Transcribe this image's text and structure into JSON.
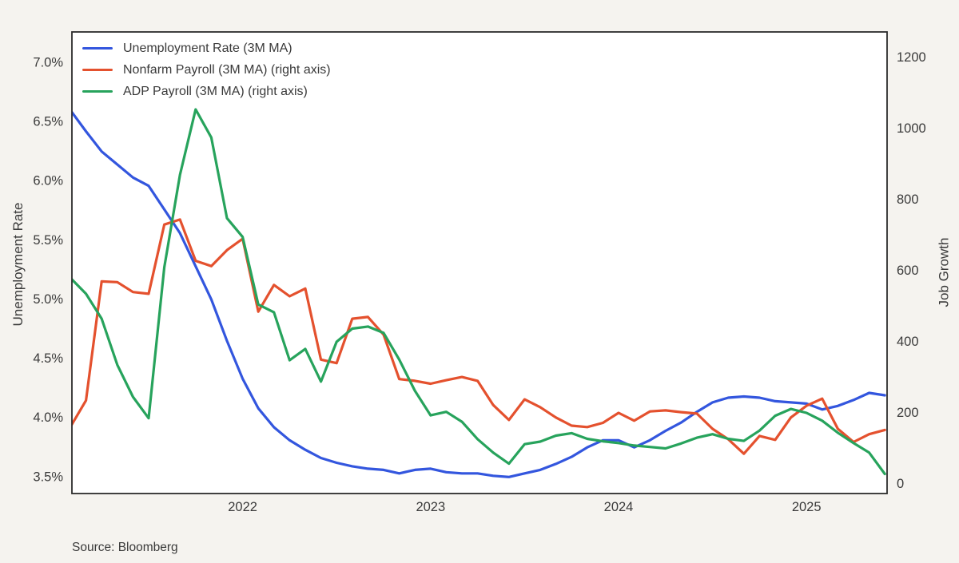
{
  "chart_data": {
    "type": "line",
    "title": "",
    "x_months": [
      "2021-02",
      "2021-03",
      "2021-04",
      "2021-05",
      "2021-06",
      "2021-07",
      "2021-08",
      "2021-09",
      "2021-10",
      "2021-11",
      "2021-12",
      "2022-01",
      "2022-02",
      "2022-03",
      "2022-04",
      "2022-05",
      "2022-06",
      "2022-07",
      "2022-08",
      "2022-09",
      "2022-10",
      "2022-11",
      "2022-12",
      "2023-01",
      "2023-02",
      "2023-03",
      "2023-04",
      "2023-05",
      "2023-06",
      "2023-07",
      "2023-08",
      "2023-09",
      "2023-10",
      "2023-11",
      "2023-12",
      "2024-01",
      "2024-02",
      "2024-03",
      "2024-04",
      "2024-05",
      "2024-06",
      "2024-07",
      "2024-08",
      "2024-09",
      "2024-10",
      "2024-11",
      "2024-12",
      "2025-01",
      "2025-02",
      "2025-03",
      "2025-04",
      "2025-05",
      "2025-06"
    ],
    "x_tick_labels": [
      "2022",
      "2023",
      "2024",
      "2025"
    ],
    "x_tick_month_indices": [
      11,
      23,
      35,
      47
    ],
    "left_axis": {
      "label": "Unemployment Rate",
      "unit": "percent",
      "tick_labels": [
        "3.5%",
        "4.0%",
        "4.5%",
        "5.0%",
        "5.5%",
        "6.0%",
        "6.5%",
        "7.0%"
      ],
      "tick_values": [
        3.5,
        4.0,
        4.5,
        5.0,
        5.5,
        6.0,
        6.5,
        7.0
      ],
      "ylim": [
        3.36,
        7.26
      ]
    },
    "right_axis": {
      "label": "Job Growth",
      "unit": "thousands",
      "tick_labels": [
        "0",
        "200",
        "400",
        "600",
        "800",
        "1000",
        "1200"
      ],
      "tick_values": [
        0,
        200,
        400,
        600,
        800,
        1000,
        1200
      ],
      "ylim": [
        -27,
        1272
      ]
    },
    "grid": false,
    "legend_position": "upper left",
    "series": [
      {
        "name": "Unemployment Rate (3M MA)",
        "short_name": "unemployment-rate",
        "axis": "left",
        "color": "#3356de",
        "values": [
          6.6,
          6.42,
          6.25,
          6.14,
          6.03,
          5.96,
          5.76,
          5.56,
          5.28,
          5.0,
          4.65,
          4.33,
          4.08,
          3.92,
          3.81,
          3.73,
          3.66,
          3.62,
          3.59,
          3.57,
          3.56,
          3.53,
          3.56,
          3.57,
          3.54,
          3.53,
          3.53,
          3.51,
          3.5,
          3.53,
          3.56,
          3.61,
          3.67,
          3.75,
          3.81,
          3.81,
          3.75,
          3.81,
          3.89,
          3.96,
          4.05,
          4.13,
          4.17,
          4.18,
          4.17,
          4.14,
          4.13,
          4.12,
          4.07,
          4.1,
          4.15,
          4.21,
          4.19
        ]
      },
      {
        "name": "Nonfarm Payroll (3M MA) (right axis)",
        "short_name": "nonfarm-payroll",
        "axis": "right",
        "color": "#e4512e",
        "values": [
          160,
          235,
          570,
          568,
          540,
          535,
          730,
          744,
          628,
          613,
          658,
          690,
          485,
          560,
          528,
          550,
          350,
          340,
          465,
          470,
          420,
          295,
          290,
          282,
          292,
          301,
          290,
          222,
          180,
          238,
          216,
          187,
          164,
          160,
          172,
          200,
          178,
          204,
          207,
          202,
          198,
          155,
          126,
          85,
          135,
          124,
          187,
          220,
          240,
          155,
          118,
          140,
          152
        ]
      },
      {
        "name": "ADP Payroll (3M MA) (right axis)",
        "short_name": "adp-payroll",
        "axis": "right",
        "color": "#27a35c",
        "values": [
          580,
          535,
          465,
          335,
          245,
          185,
          610,
          870,
          1054,
          975,
          748,
          695,
          505,
          483,
          348,
          380,
          288,
          400,
          437,
          443,
          425,
          350,
          262,
          193,
          203,
          175,
          126,
          88,
          57,
          112,
          119,
          136,
          143,
          127,
          120,
          115,
          108,
          104,
          100,
          114,
          130,
          140,
          127,
          121,
          150,
          192,
          211,
          200,
          178,
          144,
          115,
          88,
          28
        ]
      }
    ],
    "source": "Source: Bloomberg",
    "colors": {
      "background": "#f5f3ef",
      "plot_background": "#ffffff",
      "border": "#2b2b2b",
      "text": "#3a3a3a"
    }
  }
}
